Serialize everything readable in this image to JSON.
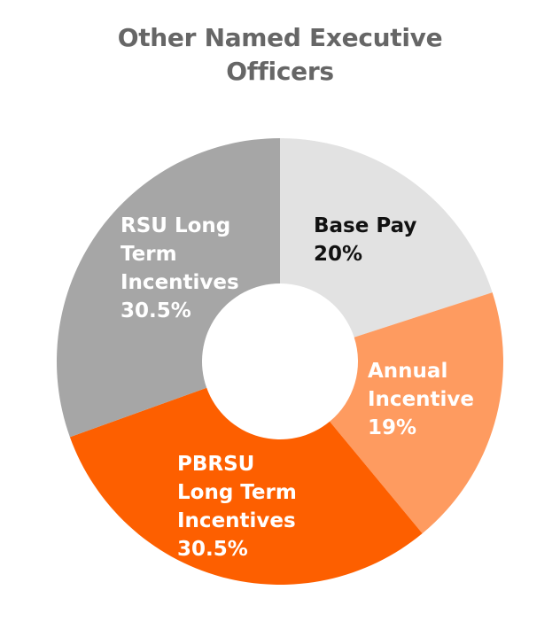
{
  "title_lines": [
    "Other Named Executive",
    "Officers"
  ],
  "chart_data": {
    "type": "pie",
    "title": "Other Named Executive Officers",
    "donut": true,
    "start": "top, clockwise",
    "slices": [
      {
        "name": "Base Pay",
        "value": 20,
        "label_lines": [
          "Base Pay",
          "20%"
        ],
        "color": "#e2e2e2",
        "label_color": "#111111"
      },
      {
        "name": "Annual Incentive",
        "value": 19,
        "label_lines": [
          "Annual",
          "Incentive",
          "19%"
        ],
        "color": "#fe9b60",
        "label_color": "#ffffff"
      },
      {
        "name": "PBRSU Long Term Incentives",
        "value": 30.5,
        "label_lines": [
          "PBRSU",
          "Long Term",
          "Incentives",
          "30.5%"
        ],
        "color": "#fd5f00",
        "label_color": "#ffffff"
      },
      {
        "name": "RSU Long Term Incentives",
        "value": 30.5,
        "label_lines": [
          "RSU Long",
          "Term",
          "Incentives",
          "30.5%"
        ],
        "color": "#a6a6a6",
        "label_color": "#ffffff"
      }
    ]
  }
}
